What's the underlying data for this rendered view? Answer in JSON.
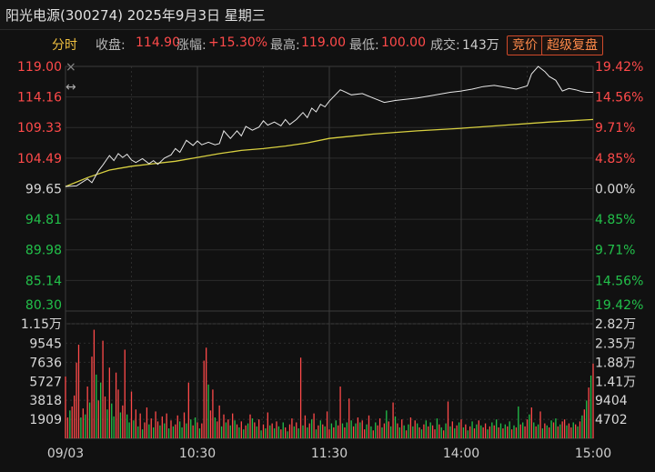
{
  "header": {
    "title": "阳光电源(300274) 2025年9月3日 星期三"
  },
  "info": {
    "mode": "分时",
    "close_label": "收盘:",
    "close_value": "114.90",
    "change_label": "涨幅:",
    "change_value": "+15.30%",
    "high_label": "最高:",
    "high_value": "119.00",
    "low_label": "最低:",
    "low_value": "100.00",
    "volume_label": "成交:",
    "volume_value": "143万",
    "btn_bid": "竞价",
    "btn_super": "超级复盘"
  },
  "colors": {
    "up": "#ff4a4a",
    "down": "#22c04a",
    "price_line": "#e8e8e8",
    "avg_line": "#d8d040",
    "background": "#111111",
    "grid": "#2c2c2c",
    "button_border": "#d04a2a"
  },
  "icons": {
    "cross": "×",
    "resize": "↔"
  },
  "chart_data": {
    "type": "line",
    "prev_close": 99.65,
    "price_axis": {
      "ylim": [
        80.3,
        119.0
      ],
      "left_ticks": [
        "119.00",
        "114.16",
        "109.33",
        "104.49",
        "99.65",
        "94.81",
        "89.98",
        "85.14",
        "80.30"
      ],
      "right_ticks": [
        "19.42%",
        "14.56%",
        "9.71%",
        "4.85%",
        "0.00%",
        "4.85%",
        "9.71%",
        "14.56%",
        "19.42%"
      ],
      "tick_values": [
        119.0,
        114.16,
        109.33,
        104.49,
        99.65,
        94.81,
        89.98,
        85.14,
        80.3
      ]
    },
    "x_ticks": [
      "09/03",
      "10:30",
      "11:30",
      "14:00",
      "15:00"
    ],
    "price_series": {
      "x": [
        0,
        5,
        10,
        12,
        15,
        17,
        20,
        22,
        24,
        26,
        28,
        30,
        32,
        35,
        38,
        40,
        42,
        45,
        48,
        50,
        52,
        55,
        58,
        60,
        62,
        65,
        68,
        70,
        72,
        75,
        78,
        80,
        82,
        85,
        88,
        90,
        92,
        95,
        98,
        100,
        102,
        105,
        108,
        110,
        112,
        114,
        116,
        118,
        120,
        125,
        130,
        135,
        140,
        145,
        150,
        155,
        160,
        165,
        170,
        175,
        180,
        185,
        190,
        195,
        200,
        205,
        210,
        212,
        215,
        218,
        220,
        223,
        226,
        229,
        232,
        235,
        237,
        240
      ],
      "values": [
        100.0,
        100.1,
        101.2,
        100.6,
        102.5,
        103.4,
        104.9,
        104.1,
        105.2,
        104.6,
        105.1,
        104.2,
        103.8,
        104.4,
        103.6,
        104.1,
        103.5,
        104.5,
        105.0,
        106.0,
        105.4,
        107.3,
        106.5,
        107.2,
        106.6,
        107.0,
        106.6,
        106.8,
        108.8,
        107.6,
        108.8,
        108.0,
        109.5,
        108.9,
        109.4,
        110.4,
        109.7,
        110.2,
        109.6,
        110.6,
        109.8,
        110.6,
        111.7,
        110.9,
        112.4,
        111.8,
        113.0,
        112.6,
        113.5,
        115.3,
        114.5,
        114.7,
        114.0,
        113.3,
        113.6,
        113.8,
        114.0,
        114.3,
        114.6,
        114.9,
        115.1,
        115.4,
        115.8,
        116.0,
        115.7,
        115.4,
        115.9,
        117.8,
        119.0,
        118.2,
        117.4,
        116.8,
        115.1,
        115.5,
        115.3,
        115.0,
        114.9,
        114.9
      ]
    },
    "avg_series": {
      "x": [
        0,
        10,
        20,
        30,
        40,
        50,
        60,
        70,
        80,
        90,
        100,
        110,
        120,
        140,
        160,
        180,
        200,
        220,
        240
      ],
      "values": [
        100.0,
        101.4,
        102.6,
        103.2,
        103.6,
        104.0,
        104.6,
        105.2,
        105.7,
        106.0,
        106.4,
        106.9,
        107.6,
        108.3,
        108.8,
        109.2,
        109.7,
        110.2,
        110.6
      ]
    },
    "volume_axis": {
      "ylim": [
        0,
        11500
      ],
      "left_ticks": [
        "1.15万",
        "9545",
        "7636",
        "5727",
        "3818",
        "1909"
      ],
      "right_ticks": [
        "2.82万",
        "2.35万",
        "1.88万",
        "1.41万",
        "9404",
        "4702"
      ]
    },
    "volume_series": {
      "values": [
        6200,
        2100,
        2800,
        3200,
        4300,
        7600,
        9400,
        2100,
        3000,
        2400,
        5200,
        3600,
        8200,
        10900,
        6400,
        3800,
        5600,
        9800,
        4200,
        2900,
        7100,
        3500,
        2200,
        6600,
        4900,
        2600,
        3300,
        8900,
        2400,
        1600,
        4700,
        1800,
        2900,
        1200,
        2500,
        900,
        1600,
        3100,
        1400,
        2000,
        1100,
        2700,
        1700,
        1300,
        2200,
        1500,
        2500,
        1000,
        1800,
        1200,
        1400,
        2300,
        1700,
        1100,
        2600,
        1500,
        5600,
        1900,
        1300,
        2100,
        1600,
        1000,
        1500,
        7800,
        9100,
        5400,
        2800,
        4900,
        2100,
        1700,
        3300,
        1200,
        2400,
        1600,
        1900,
        1300,
        2500,
        1800,
        1400,
        1100,
        1700,
        900,
        1300,
        1500,
        2400,
        2000,
        1600,
        1200,
        1900,
        800,
        1400,
        1000,
        2600,
        1300,
        1500,
        1000,
        1700,
        1200,
        900,
        1600,
        1100,
        700,
        1400,
        2000,
        1200,
        1600,
        1000,
        8100,
        1300,
        2300,
        1100,
        1500,
        1900,
        2500,
        900,
        1300,
        1800,
        1400,
        1200,
        2700,
        900,
        1500,
        1100,
        1800,
        1300,
        5200,
        1500,
        1100,
        1600,
        4000,
        1800,
        1200,
        1500,
        2100,
        1600,
        1800,
        900,
        1400,
        2300,
        1200,
        800,
        1600,
        1300,
        2000,
        1100,
        1500,
        2800,
        1700,
        1200,
        3600,
        2200,
        1500,
        1100,
        1900,
        1300,
        800,
        1400,
        2100,
        1200,
        1800,
        1500,
        1100,
        900,
        1400,
        1800,
        1200,
        1600,
        1300,
        900,
        2000,
        1400,
        1100,
        800,
        1500,
        3700,
        1200,
        1700,
        1000,
        1300,
        1600,
        1900,
        1100,
        1400,
        800,
        1200,
        1700,
        1000,
        1400,
        1800,
        1300,
        1100,
        1500,
        900,
        1200,
        1600,
        1300,
        1900,
        1100,
        1500,
        1000,
        1400,
        1200,
        1700,
        900,
        1300,
        1100,
        3200,
        1400,
        1600,
        1200,
        1900,
        2400,
        3100,
        1600,
        1200,
        1400,
        2700,
        1000,
        1500,
        1300,
        1100,
        1800,
        1600,
        2000,
        1200,
        1400,
        1700,
        1900,
        1300,
        1500,
        1100,
        1600,
        1400,
        1200,
        1700,
        2300,
        2900,
        3800,
        5100,
        6300,
        7500
      ],
      "up": [
        true,
        true,
        false,
        true,
        true,
        true,
        true,
        false,
        true,
        false,
        true,
        false,
        true,
        true,
        false,
        true,
        false,
        true,
        true,
        false,
        true,
        false,
        false,
        true,
        true,
        false,
        true,
        true,
        false,
        false,
        true,
        false,
        true,
        false,
        true,
        false,
        true,
        true,
        false,
        true,
        false,
        true,
        true,
        false,
        true,
        false,
        true,
        false,
        true,
        false,
        true,
        true,
        false,
        false,
        true,
        false,
        true,
        false,
        true,
        false,
        true,
        false,
        true,
        true,
        true,
        false,
        true,
        true,
        false,
        true,
        true,
        false,
        true,
        false,
        true,
        false,
        true,
        false,
        true,
        false,
        true,
        false,
        true,
        false,
        true,
        false,
        true,
        false,
        true,
        false,
        true,
        false,
        true,
        false,
        true,
        false,
        true,
        false,
        true,
        false,
        true,
        false,
        true,
        true,
        false,
        true,
        false,
        true,
        false,
        true,
        false,
        true,
        false,
        true,
        false,
        true,
        false,
        true,
        false,
        true,
        true,
        false,
        true,
        false,
        true,
        true,
        false,
        true,
        false,
        true,
        false,
        true,
        false,
        true,
        false,
        true,
        true,
        false,
        true,
        false,
        true,
        false,
        true,
        true,
        false,
        true,
        false,
        true,
        false,
        true,
        false,
        true,
        false,
        true,
        false,
        true,
        false,
        true,
        false,
        true,
        false,
        true,
        false,
        true,
        false,
        true,
        false,
        true,
        true,
        false,
        true,
        false,
        true,
        false,
        true,
        false,
        true,
        false,
        true,
        false,
        true,
        false,
        true,
        false,
        true,
        false,
        true,
        false,
        true,
        false,
        true,
        true,
        false,
        true,
        false,
        true,
        false,
        true,
        false,
        true,
        false,
        true,
        false,
        true,
        false,
        true,
        false,
        true,
        false,
        true,
        true,
        false,
        true,
        false,
        true,
        false,
        true,
        false,
        true,
        false,
        true,
        false,
        true,
        false,
        true,
        false,
        true,
        true,
        false,
        true,
        true,
        false,
        true,
        false,
        true,
        false,
        true,
        false,
        true,
        false,
        true,
        true,
        true,
        true,
        true,
        true
      ]
    }
  }
}
